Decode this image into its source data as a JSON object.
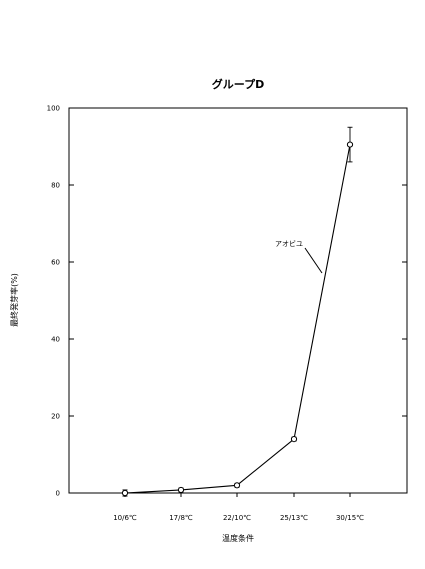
{
  "chart_data": {
    "type": "line",
    "title": "グループD",
    "xlabel": "温度条件",
    "ylabel": "最終発芽率(%)",
    "categories": [
      "10/6℃",
      "17/8℃",
      "22/10℃",
      "25/13℃",
      "30/15℃"
    ],
    "ylim": [
      0,
      100
    ],
    "yticks": [
      0,
      20,
      40,
      60,
      80,
      100
    ],
    "grid": false,
    "series": [
      {
        "name": "アオビユ",
        "values": [
          0,
          0.8,
          2,
          14,
          90.5
        ],
        "error": [
          0.8,
          0.5,
          0.5,
          0.5,
          4.5
        ],
        "marker": "open-circle",
        "color": "#000000"
      }
    ],
    "annotations": [
      {
        "text": "アオビユ",
        "series": "アオビユ"
      }
    ]
  }
}
